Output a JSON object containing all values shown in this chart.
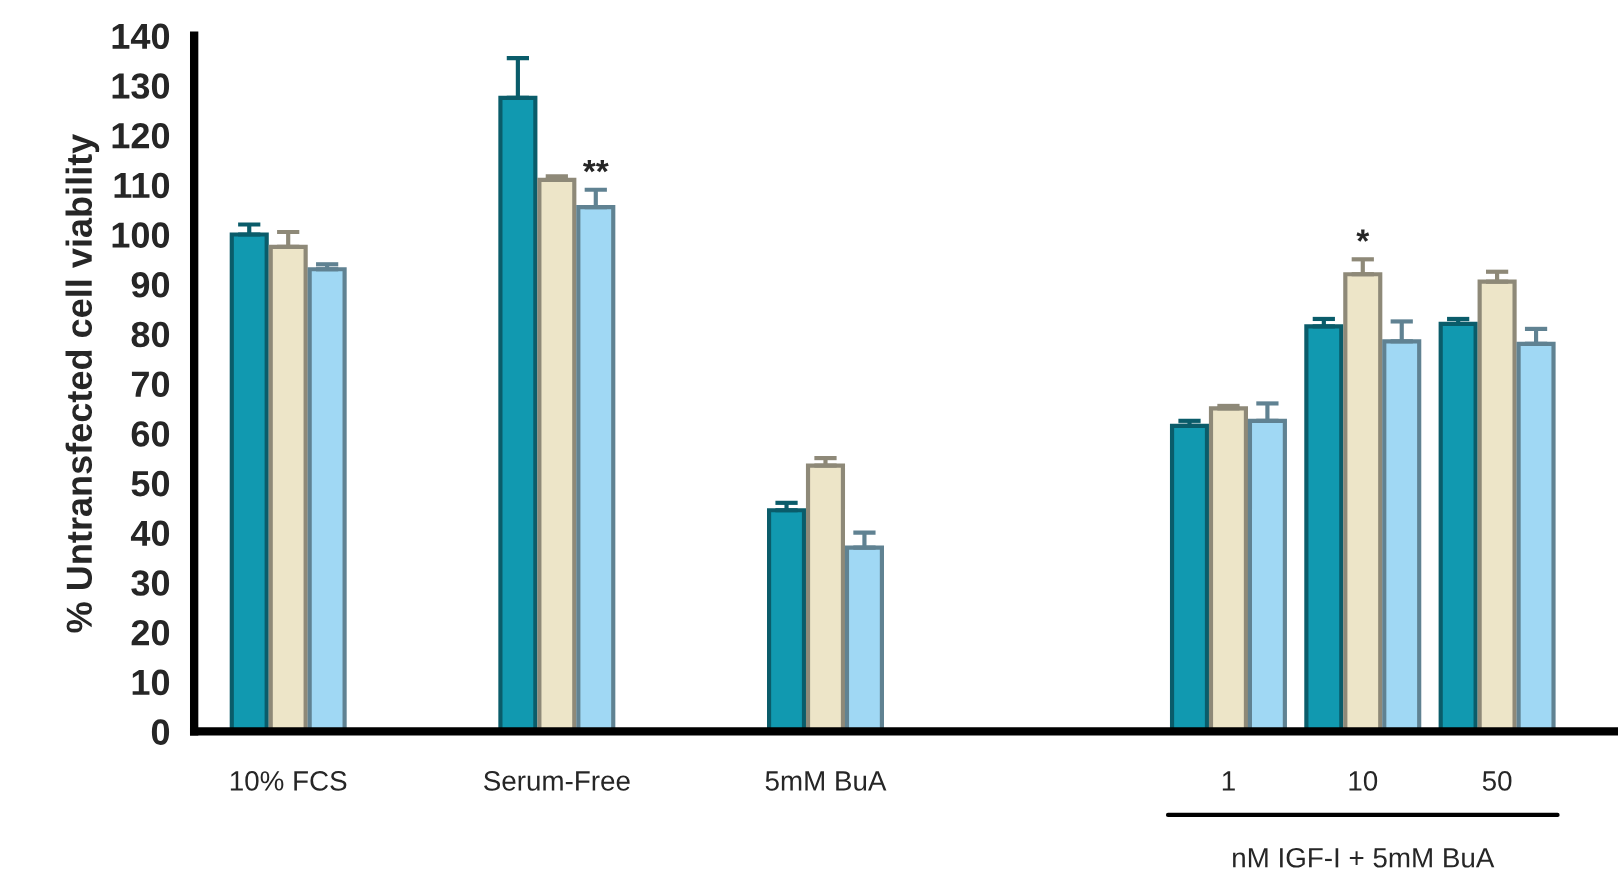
{
  "chart_data": {
    "type": "bar",
    "ylabel": "% Untransfected cell viability",
    "categories": [
      "10% FCS",
      null,
      "Serum-Free",
      null,
      "5mM BuA",
      null,
      null,
      "1",
      "10",
      "50"
    ],
    "series": [
      {
        "color": "#1199b0",
        "values": [
          100,
          null,
          127.5,
          null,
          44.5,
          null,
          null,
          61.5,
          81.5,
          82
        ],
        "errors": [
          2,
          null,
          8,
          null,
          1.5,
          null,
          null,
          1,
          1.5,
          1
        ]
      },
      {
        "color": "#ede5c8",
        "values": [
          97.5,
          null,
          111,
          null,
          53.5,
          null,
          null,
          65,
          92,
          90.5
        ],
        "errors": [
          3,
          null,
          0.7,
          null,
          1.5,
          null,
          null,
          0.5,
          3,
          2
        ]
      },
      {
        "color": "#a0d8f4",
        "values": [
          93,
          null,
          105.5,
          null,
          37,
          null,
          null,
          62.5,
          78.5,
          78
        ],
        "errors": [
          1,
          null,
          3.5,
          null,
          3,
          null,
          null,
          3.5,
          4,
          3
        ]
      }
    ],
    "ylim": [
      0,
      140
    ],
    "yticks": [
      0,
      10,
      20,
      30,
      40,
      50,
      60,
      70,
      80,
      90,
      100,
      110,
      120,
      130,
      140
    ],
    "annotations": [
      {
        "text": "**",
        "x": "Serum-Free",
        "y": 109
      },
      {
        "text": "*",
        "x": "10",
        "y": 95
      },
      "nM IGF-I + 5mM BuA"
    ],
    "grid": false,
    "legend": false
  }
}
